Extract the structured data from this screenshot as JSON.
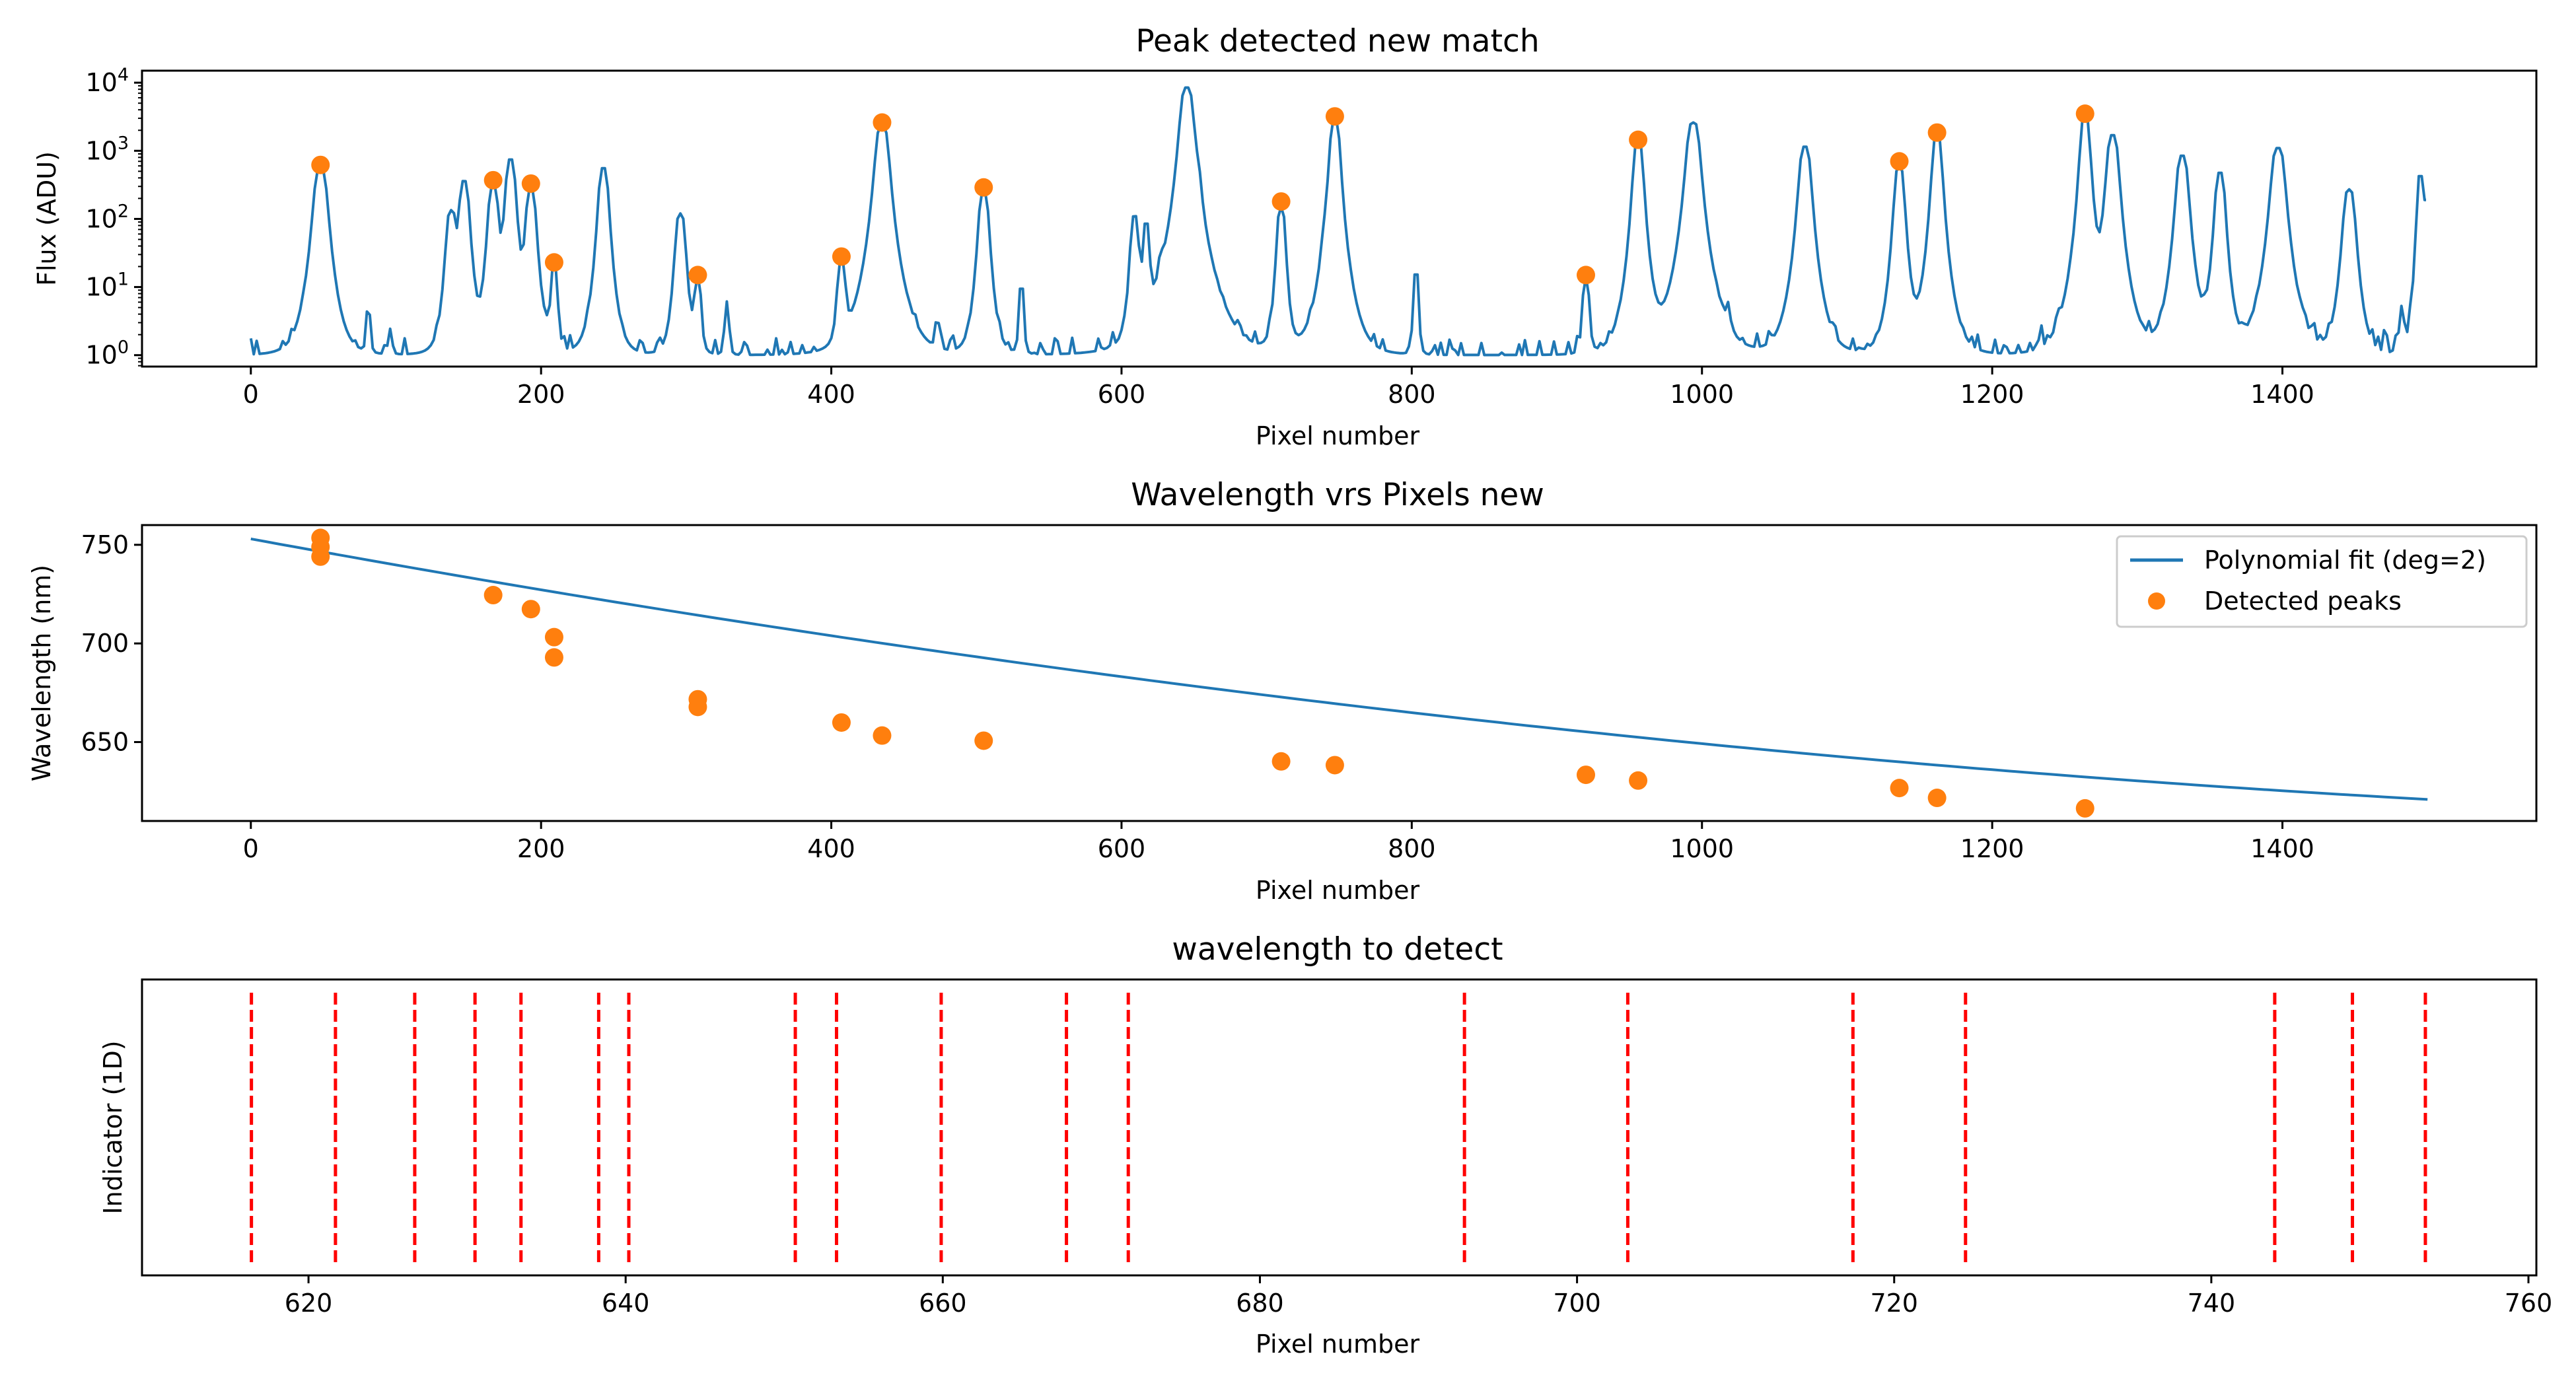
{
  "colors": {
    "line": "#1f77b4",
    "marker": "#ff7f0e",
    "indicator": "#ff0000",
    "background": "#ffffff",
    "axes": "#000000"
  },
  "chart_data": [
    {
      "type": "line",
      "title": "Peak detected new match",
      "xlabel": "Pixel number",
      "ylabel": "Flux (ADU)",
      "yscale": "log",
      "xlim": [
        -75,
        1575
      ],
      "ylim": [
        0.68,
        15000
      ],
      "grid": false,
      "xticks": [
        0,
        200,
        400,
        600,
        800,
        1000,
        1200,
        1400
      ],
      "xtick_labels": [
        "0",
        "200",
        "400",
        "600",
        "800",
        "1000",
        "1200",
        "1400"
      ],
      "yticks": [
        1,
        10,
        100,
        1000,
        10000
      ],
      "ytick_labels": [
        {
          "base": "10",
          "exp": "0"
        },
        {
          "base": "10",
          "exp": "1"
        },
        {
          "base": "10",
          "exp": "2"
        },
        {
          "base": "10",
          "exp": "3"
        },
        {
          "base": "10",
          "exp": "4"
        }
      ],
      "series": [
        {
          "kind": "line",
          "baseline": 1,
          "x_max": 1499,
          "end_value": 190,
          "lines": [
            {
              "x": 48,
              "peak": 550,
              "width": 4
            },
            {
              "x": 81,
              "peak": 4,
              "width": 1.5
            },
            {
              "x": 96,
              "peak": 2.4,
              "width": 1.5
            },
            {
              "x": 138,
              "peak": 130,
              "width": 3
            },
            {
              "x": 147,
              "peak": 360,
              "width": 3
            },
            {
              "x": 167,
              "peak": 320,
              "width": 3
            },
            {
              "x": 179,
              "peak": 750,
              "width": 3
            },
            {
              "x": 193,
              "peak": 280,
              "width": 3
            },
            {
              "x": 209,
              "peak": 22,
              "width": 2
            },
            {
              "x": 243,
              "peak": 560,
              "width": 3
            },
            {
              "x": 296,
              "peak": 120,
              "width": 3
            },
            {
              "x": 308,
              "peak": 14,
              "width": 2
            },
            {
              "x": 328,
              "peak": 6,
              "width": 1.5
            },
            {
              "x": 407,
              "peak": 24,
              "width": 2.5
            },
            {
              "x": 435,
              "peak": 2400,
              "width": 4
            },
            {
              "x": 473,
              "peak": 3,
              "width": 1.5
            },
            {
              "x": 505,
              "peak": 260,
              "width": 3
            },
            {
              "x": 531,
              "peak": 11,
              "width": 1.5
            },
            {
              "x": 609,
              "peak": 110,
              "width": 2.5
            },
            {
              "x": 617,
              "peak": 85,
              "width": 2
            },
            {
              "x": 627,
              "peak": 12,
              "width": 1.5
            },
            {
              "x": 645,
              "peak": 8500,
              "width": 4
            },
            {
              "x": 653,
              "peak": 180,
              "width": 2
            },
            {
              "x": 710,
              "peak": 150,
              "width": 2.5
            },
            {
              "x": 740,
              "peak": 20,
              "width": 2
            },
            {
              "x": 747,
              "peak": 3000,
              "width": 3
            },
            {
              "x": 803,
              "peak": 18,
              "width": 1.5
            },
            {
              "x": 920,
              "peak": 14,
              "width": 2
            },
            {
              "x": 956,
              "peak": 1400,
              "width": 3
            },
            {
              "x": 994,
              "peak": 2600,
              "width": 4
            },
            {
              "x": 1018,
              "peak": 4,
              "width": 1.5
            },
            {
              "x": 1071,
              "peak": 1150,
              "width": 3.5
            },
            {
              "x": 1136,
              "peak": 600,
              "width": 3
            },
            {
              "x": 1162,
              "peak": 1650,
              "width": 3
            },
            {
              "x": 1264,
              "peak": 3100,
              "width": 3
            },
            {
              "x": 1283,
              "peak": 1700,
              "width": 3.5
            },
            {
              "x": 1331,
              "peak": 850,
              "width": 3.5
            },
            {
              "x": 1357,
              "peak": 480,
              "width": 3
            },
            {
              "x": 1397,
              "peak": 1100,
              "width": 4
            },
            {
              "x": 1446,
              "peak": 270,
              "width": 3.5
            },
            {
              "x": 1482,
              "peak": 5,
              "width": 1.5
            },
            {
              "x": 1495,
              "peak": 450,
              "width": 2
            }
          ]
        },
        {
          "kind": "scatter",
          "x": [
            48,
            167,
            193,
            209,
            308,
            407,
            435,
            505,
            710,
            747,
            920,
            956,
            1136,
            1162,
            1264
          ],
          "y": [
            620,
            370,
            330,
            23,
            15,
            28,
            2600,
            290,
            180,
            3200,
            15,
            1450,
            700,
            1850,
            3500
          ]
        }
      ]
    },
    {
      "type": "line",
      "title": "Wavelength vrs Pixels new",
      "xlabel": "Pixel number",
      "ylabel": "Wavelength (nm)",
      "xlim": [
        -75,
        1575
      ],
      "ylim": [
        610,
        760
      ],
      "grid": false,
      "legend": "top-right",
      "xticks": [
        0,
        200,
        400,
        600,
        800,
        1000,
        1200,
        1400
      ],
      "xtick_labels": [
        "0",
        "200",
        "400",
        "600",
        "800",
        "1000",
        "1200",
        "1400"
      ],
      "yticks": [
        650,
        700,
        750
      ],
      "ytick_labels": [
        "650",
        "700",
        "750"
      ],
      "series": [
        {
          "kind": "line",
          "name": "Polynomial fit (deg=2)",
          "x_range": [
            0,
            1500
          ],
          "coefficients": [
            753,
            -0.1353,
            3.15e-05
          ]
        },
        {
          "kind": "scatter",
          "name": "Detected peaks",
          "x": [
            48,
            48,
            48,
            167,
            193,
            209,
            209,
            308,
            308,
            407,
            435,
            505,
            710,
            747,
            920,
            956,
            1136,
            1162,
            1264
          ],
          "y": [
            753.5,
            748.9,
            744.0,
            724.5,
            717.4,
            703.2,
            692.9,
            671.7,
            667.8,
            659.9,
            653.3,
            650.7,
            640.2,
            638.3,
            633.4,
            630.5,
            626.7,
            621.7,
            616.4
          ]
        }
      ]
    },
    {
      "type": "line",
      "title": "wavelength to detect",
      "xlabel": "Pixel number",
      "ylabel": "Indicator (1D)",
      "xlim": [
        609.5,
        760.5
      ],
      "grid": false,
      "xticks": [
        620,
        640,
        660,
        680,
        700,
        720,
        740,
        760
      ],
      "xtick_labels": [
        "620",
        "640",
        "660",
        "680",
        "700",
        "720",
        "740",
        "760"
      ],
      "yticks": [],
      "series": [
        {
          "kind": "vlines",
          "style": "dashed",
          "x": [
            616.4,
            621.7,
            626.7,
            630.5,
            633.4,
            638.3,
            640.2,
            650.7,
            653.3,
            659.9,
            667.8,
            671.7,
            692.9,
            703.2,
            717.4,
            724.5,
            744.0,
            748.9,
            753.5
          ]
        }
      ]
    }
  ]
}
